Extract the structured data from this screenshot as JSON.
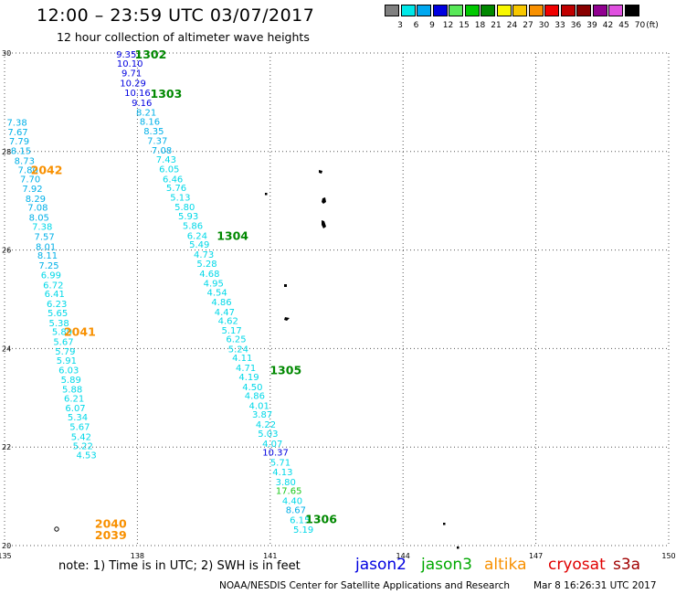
{
  "header": {
    "title": "12:00 – 23:59 UTC 03/07/2017",
    "subtitle": "12 hour collection of altimeter wave heights"
  },
  "legend": {
    "unit": "(ft)",
    "bins": [
      {
        "label": "3",
        "color": "#808080"
      },
      {
        "label": "6",
        "color": "#00e8e8"
      },
      {
        "label": "9",
        "color": "#00a8f0"
      },
      {
        "label": "12",
        "color": "#0000e0"
      },
      {
        "label": "15",
        "color": "#58e858"
      },
      {
        "label": "18",
        "color": "#00c800"
      },
      {
        "label": "21",
        "color": "#008800"
      },
      {
        "label": "24",
        "color": "#f8f800"
      },
      {
        "label": "27",
        "color": "#f8c800"
      },
      {
        "label": "30",
        "color": "#f89000"
      },
      {
        "label": "33",
        "color": "#f00000"
      },
      {
        "label": "36",
        "color": "#c00000"
      },
      {
        "label": "39",
        "color": "#880000"
      },
      {
        "label": "42",
        "color": "#900090"
      },
      {
        "label": "45",
        "color": "#e050e0"
      },
      {
        "label": "70",
        "color": "#000000"
      }
    ]
  },
  "axes": {
    "lat_ticks": [
      "30",
      "28",
      "26",
      "24",
      "22",
      "20"
    ],
    "lon_ticks": [
      "135",
      "138",
      "141",
      "144",
      "147",
      "150"
    ]
  },
  "tracks": [
    {
      "color": "#0000e0",
      "points": [
        {
          "v": "9.35",
          "lon": 137.75,
          "lat": 29.98
        },
        {
          "v": "10.10",
          "lon": 137.83,
          "lat": 29.8
        },
        {
          "v": "9.71",
          "lon": 137.87,
          "lat": 29.6
        },
        {
          "v": "10.29",
          "lon": 137.9,
          "lat": 29.4
        },
        {
          "v": "10.16",
          "lon": 138.0,
          "lat": 29.2
        },
        {
          "v": "9.16",
          "lon": 138.1,
          "lat": 29.0
        }
      ]
    },
    {
      "color": "#00b0e8",
      "points": [
        {
          "v": "8.21",
          "lon": 138.2,
          "lat": 28.8
        },
        {
          "v": "8.16",
          "lon": 138.28,
          "lat": 28.62
        },
        {
          "v": "8.35",
          "lon": 138.37,
          "lat": 28.42
        },
        {
          "v": "7.37",
          "lon": 138.45,
          "lat": 28.23
        },
        {
          "v": "7.08",
          "lon": 138.55,
          "lat": 28.03
        }
      ]
    },
    {
      "color": "#00d8e8",
      "points": [
        {
          "v": "7.43",
          "lon": 138.65,
          "lat": 27.85
        },
        {
          "v": "6.05",
          "lon": 138.72,
          "lat": 27.65
        },
        {
          "v": "6.46",
          "lon": 138.8,
          "lat": 27.45
        },
        {
          "v": "5.76",
          "lon": 138.88,
          "lat": 27.27
        },
        {
          "v": "5.13",
          "lon": 138.97,
          "lat": 27.08
        },
        {
          "v": "5.80",
          "lon": 139.07,
          "lat": 26.88
        },
        {
          "v": "5.93",
          "lon": 139.15,
          "lat": 26.7
        },
        {
          "v": "5.86",
          "lon": 139.25,
          "lat": 26.5
        },
        {
          "v": "6.24",
          "lon": 139.35,
          "lat": 26.3
        },
        {
          "v": "5.49",
          "lon": 139.4,
          "lat": 26.12
        },
        {
          "v": "4.73",
          "lon": 139.5,
          "lat": 25.92
        },
        {
          "v": "5.28",
          "lon": 139.57,
          "lat": 25.73
        },
        {
          "v": "4.68",
          "lon": 139.63,
          "lat": 25.53
        },
        {
          "v": "4.95",
          "lon": 139.72,
          "lat": 25.33
        },
        {
          "v": "4.54",
          "lon": 139.8,
          "lat": 25.15
        },
        {
          "v": "4.86",
          "lon": 139.9,
          "lat": 24.95
        },
        {
          "v": "4.47",
          "lon": 139.97,
          "lat": 24.75
        },
        {
          "v": "4.62",
          "lon": 140.05,
          "lat": 24.57
        },
        {
          "v": "5.17",
          "lon": 140.13,
          "lat": 24.38
        },
        {
          "v": "6.25",
          "lon": 140.23,
          "lat": 24.2
        },
        {
          "v": "5.24",
          "lon": 140.28,
          "lat": 24.0
        },
        {
          "v": "4.11",
          "lon": 140.37,
          "lat": 23.82
        },
        {
          "v": "4.71",
          "lon": 140.45,
          "lat": 23.62
        },
        {
          "v": "4.19",
          "lon": 140.52,
          "lat": 23.43
        },
        {
          "v": "4.50",
          "lon": 140.6,
          "lat": 23.23
        },
        {
          "v": "4.86",
          "lon": 140.65,
          "lat": 23.05
        },
        {
          "v": "4.01",
          "lon": 140.75,
          "lat": 22.85
        },
        {
          "v": "3.87",
          "lon": 140.82,
          "lat": 22.67
        },
        {
          "v": "4.22",
          "lon": 140.9,
          "lat": 22.47
        },
        {
          "v": "5.03",
          "lon": 140.95,
          "lat": 22.28
        },
        {
          "v": "4.07",
          "lon": 141.05,
          "lat": 22.08
        }
      ]
    },
    {
      "color": "#0000e0",
      "points": [
        {
          "v": "10.37",
          "lon": 141.12,
          "lat": 21.9
        }
      ]
    },
    {
      "color": "#00d8e8",
      "points": [
        {
          "v": "5.71",
          "lon": 141.23,
          "lat": 21.7
        },
        {
          "v": "4.13",
          "lon": 141.28,
          "lat": 21.5
        },
        {
          "v": "3.80",
          "lon": 141.35,
          "lat": 21.3
        }
      ]
    },
    {
      "color": "#18c818",
      "points": [
        {
          "v": "17.65",
          "lon": 141.42,
          "lat": 21.12
        }
      ]
    },
    {
      "color": "#00d8e8",
      "points": [
        {
          "v": "4.40",
          "lon": 141.5,
          "lat": 20.92
        }
      ]
    },
    {
      "color": "#00b0e8",
      "points": [
        {
          "v": "8.67",
          "lon": 141.58,
          "lat": 20.73
        }
      ]
    },
    {
      "color": "#00d8e8",
      "points": [
        {
          "v": "6.15",
          "lon": 141.67,
          "lat": 20.53
        },
        {
          "v": "5.19",
          "lon": 141.75,
          "lat": 20.33
        }
      ]
    },
    {
      "color": "#00b0e8",
      "points": [
        {
          "v": "7.38",
          "lon": 135.28,
          "lat": 28.6
        },
        {
          "v": "7.67",
          "lon": 135.3,
          "lat": 28.4
        },
        {
          "v": "7.79",
          "lon": 135.33,
          "lat": 28.22
        },
        {
          "v": "8.15",
          "lon": 135.37,
          "lat": 28.02
        },
        {
          "v": "8.73",
          "lon": 135.45,
          "lat": 27.82
        },
        {
          "v": "7.80",
          "lon": 135.53,
          "lat": 27.63
        },
        {
          "v": "7.70",
          "lon": 135.58,
          "lat": 27.45
        },
        {
          "v": "7.92",
          "lon": 135.63,
          "lat": 27.25
        },
        {
          "v": "8.29",
          "lon": 135.7,
          "lat": 27.05
        },
        {
          "v": "7.08",
          "lon": 135.75,
          "lat": 26.87
        },
        {
          "v": "8.05",
          "lon": 135.78,
          "lat": 26.67
        }
      ]
    },
    {
      "color": "#00d8e8",
      "points": [
        {
          "v": "7.38",
          "lon": 135.85,
          "lat": 26.48
        }
      ]
    },
    {
      "color": "#00b0e8",
      "points": [
        {
          "v": "7.57",
          "lon": 135.9,
          "lat": 26.28
        },
        {
          "v": "8.01",
          "lon": 135.93,
          "lat": 26.08
        },
        {
          "v": "8.11",
          "lon": 135.97,
          "lat": 25.9
        },
        {
          "v": "7.25",
          "lon": 136.0,
          "lat": 25.7
        }
      ]
    },
    {
      "color": "#00d8e8",
      "points": [
        {
          "v": "6.99",
          "lon": 136.05,
          "lat": 25.5
        },
        {
          "v": "6.72",
          "lon": 136.1,
          "lat": 25.3
        },
        {
          "v": "6.41",
          "lon": 136.13,
          "lat": 25.12
        },
        {
          "v": "6.23",
          "lon": 136.18,
          "lat": 24.92
        },
        {
          "v": "5.65",
          "lon": 136.2,
          "lat": 24.73
        },
        {
          "v": "5.38",
          "lon": 136.23,
          "lat": 24.53
        },
        {
          "v": "5.89",
          "lon": 136.3,
          "lat": 24.35
        },
        {
          "v": "5.67",
          "lon": 136.33,
          "lat": 24.15
        },
        {
          "v": "5.79",
          "lon": 136.37,
          "lat": 23.95
        },
        {
          "v": "5.91",
          "lon": 136.4,
          "lat": 23.77
        },
        {
          "v": "6.03",
          "lon": 136.45,
          "lat": 23.57
        },
        {
          "v": "5.89",
          "lon": 136.5,
          "lat": 23.38
        },
        {
          "v": "5.88",
          "lon": 136.53,
          "lat": 23.18
        },
        {
          "v": "6.21",
          "lon": 136.57,
          "lat": 23.0
        },
        {
          "v": "6.07",
          "lon": 136.6,
          "lat": 22.8
        },
        {
          "v": "5.34",
          "lon": 136.65,
          "lat": 22.62
        },
        {
          "v": "5.67",
          "lon": 136.7,
          "lat": 22.42
        },
        {
          "v": "5.42",
          "lon": 136.73,
          "lat": 22.22
        },
        {
          "v": "5.22",
          "lon": 136.77,
          "lat": 22.03
        },
        {
          "v": "4.53",
          "lon": 136.85,
          "lat": 21.85
        }
      ]
    }
  ],
  "pass_labels": [
    {
      "text": "1302",
      "color": "#008800",
      "lon": 138.3,
      "lat": 29.98
    },
    {
      "text": "1303",
      "color": "#008800",
      "lon": 138.65,
      "lat": 29.18
    },
    {
      "text": "1304",
      "color": "#008800",
      "lon": 140.15,
      "lat": 26.3
    },
    {
      "text": "1305",
      "color": "#008800",
      "lon": 141.35,
      "lat": 23.57
    },
    {
      "text": "1306",
      "color": "#008800",
      "lon": 142.15,
      "lat": 20.55
    },
    {
      "text": "2042",
      "color": "#f89000",
      "lon": 135.95,
      "lat": 27.63
    },
    {
      "text": "2041",
      "color": "#f89000",
      "lon": 136.7,
      "lat": 24.35
    },
    {
      "text": "2040",
      "color": "#f89000",
      "lon": 137.4,
      "lat": 20.45
    },
    {
      "text": "2039",
      "color": "#f89000",
      "lon": 137.4,
      "lat": 20.22
    }
  ],
  "note": "note:  1) Time is in UTC;  2) SWH is in feet",
  "satellites": [
    {
      "name": "jason2",
      "color": "#0000e0"
    },
    {
      "name": "jason3",
      "color": "#00a800"
    },
    {
      "name": "altika",
      "color": "#f89000"
    },
    {
      "name": "cryosat",
      "color": "#e00000"
    },
    {
      "name": "s3a",
      "color": "#a00000"
    }
  ],
  "footer": {
    "credit": "NOAA/NESDIS Center for Satellite Applications and Research",
    "timestamp": "Mar  8 16:26:31 UTC 2017"
  }
}
